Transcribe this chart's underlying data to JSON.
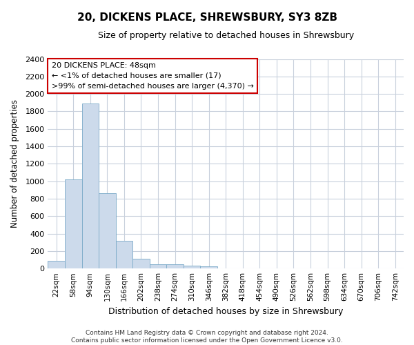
{
  "title": "20, DICKENS PLACE, SHREWSBURY, SY3 8ZB",
  "subtitle": "Size of property relative to detached houses in Shrewsbury",
  "xlabel": "Distribution of detached houses by size in Shrewsbury",
  "ylabel": "Number of detached properties",
  "bar_color": "#ccdaeb",
  "bar_edge_color": "#7aaac8",
  "background_color": "#ffffff",
  "grid_color": "#c8d0dc",
  "annotation_box_color": "#ffffff",
  "annotation_border_color": "#cc0000",
  "categories": [
    "22sqm",
    "58sqm",
    "94sqm",
    "130sqm",
    "166sqm",
    "202sqm",
    "238sqm",
    "274sqm",
    "310sqm",
    "346sqm",
    "382sqm",
    "418sqm",
    "454sqm",
    "490sqm",
    "526sqm",
    "562sqm",
    "598sqm",
    "634sqm",
    "670sqm",
    "706sqm",
    "742sqm"
  ],
  "values": [
    85,
    1020,
    1890,
    860,
    320,
    115,
    50,
    45,
    30,
    25,
    0,
    0,
    0,
    0,
    0,
    0,
    0,
    0,
    0,
    0,
    0
  ],
  "ylim": [
    0,
    2400
  ],
  "yticks": [
    0,
    200,
    400,
    600,
    800,
    1000,
    1200,
    1400,
    1600,
    1800,
    2000,
    2200,
    2400
  ],
  "annotation_line1": "20 DICKENS PLACE: 48sqm",
  "annotation_line2": "← <1% of detached houses are smaller (17)",
  "annotation_line3": ">99% of semi-detached houses are larger (4,370) →",
  "footnote1": "Contains HM Land Registry data © Crown copyright and database right 2024.",
  "footnote2": "Contains public sector information licensed under the Open Government Licence v3.0."
}
